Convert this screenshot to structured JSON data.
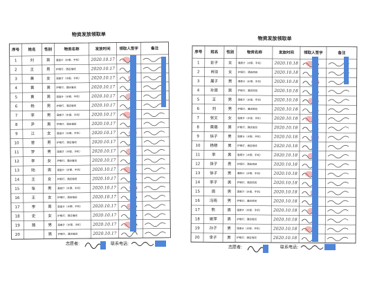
{
  "forms": [
    {
      "title": "物资发放领取单",
      "headers": [
        "序号",
        "姓名",
        "性别",
        "物资名称",
        "发放时间",
        "领取人签字",
        "备注"
      ],
      "rows": [
        [
          "1",
          "刘",
          "男",
          "温度计（水银、手机）",
          "2020.10.17"
        ],
        [
          "2",
          "王",
          "男",
          "护眼灯、酒店值班",
          "2020.10.17"
        ],
        [
          "3",
          "黄",
          "女",
          "温度计（水银、手机）",
          "2020.10.17"
        ],
        [
          "4",
          "黄",
          "男",
          "护眼灯、酒店值班",
          "2020.10.17"
        ],
        [
          "5",
          "黄",
          "男",
          "温度计（水银、手机）",
          "2020.10.17"
        ],
        [
          "6",
          "杨",
          "男",
          "护眼灯、酒店值班",
          "2020.10.17"
        ],
        [
          "7",
          "李",
          "男",
          "温度计（水银、手机）",
          "2020.10.17"
        ],
        [
          "8",
          "尹",
          "男",
          "护眼灯、酒店值班",
          "2020.10.17"
        ],
        [
          "9",
          "江",
          "女",
          "温度计（水银、手机）",
          "2020.10.17"
        ],
        [
          "10",
          "曾",
          "男",
          "护眼灯、酒店值班",
          "2020.10.17"
        ],
        [
          "11",
          "罗",
          "男",
          "温度计（水银、手机）",
          "2020.10.17"
        ],
        [
          "12",
          "李",
          "女",
          "护眼灯、酒店值班",
          "2020.10.17"
        ],
        [
          "13",
          "陆",
          "男",
          "温度计（水银、手机）",
          "2020.10.17"
        ],
        [
          "14",
          "王",
          "女",
          "护眼灯、酒店值班",
          "2020.10.17"
        ],
        [
          "15",
          "张",
          "男",
          "温度计（水银、手机）",
          "2020.10.17"
        ],
        [
          "16",
          "王",
          "女",
          "护眼灯、酒店值班",
          "2020.10.17"
        ],
        [
          "17",
          "李",
          "男",
          "温度计（水银、手机）",
          "2020.10.17"
        ],
        [
          "18",
          "史",
          "女",
          "护眼灯、酒店值班",
          "2020.10.17"
        ],
        [
          "19",
          "路",
          "男",
          "温度计（水银、手机）",
          "2020.10.17"
        ],
        [
          "20",
          "",
          "男",
          "护眼灯、酒店值班",
          "2020.10.17"
        ]
      ],
      "volunteer": "志愿者:",
      "phone": "联系电话:"
    },
    {
      "title": "物资发放领取单",
      "headers": [
        "序号",
        "姓名",
        "性别",
        "物资名称",
        "发放时间",
        "领取人签字",
        "备注"
      ],
      "rows": [
        [
          "1",
          "彭子",
          "女",
          "温度计（水银、手机）",
          "2020.10.18"
        ],
        [
          "2",
          "肖琼",
          "女",
          "护眼灯、酒店值班",
          "2020.10.18"
        ],
        [
          "3",
          "屠子",
          "男",
          "温度计（水银、手机）",
          "2020.10.18"
        ],
        [
          "4",
          "孙崇",
          "男",
          "护眼灯、酒店值班",
          "2020.10.18"
        ],
        [
          "5",
          "王",
          "男",
          "温度计（水银、手机）",
          "2020.10.18"
        ],
        [
          "6",
          "刘",
          "男",
          "护眼灯、酒店值班",
          "2020.10.18"
        ],
        [
          "7",
          "张文",
          "女",
          "温度计（水银、手机）",
          "2020.10.18"
        ],
        [
          "8",
          "黄璐",
          "男",
          "护眼灯、酒店值班",
          "2020.10.18"
        ],
        [
          "9",
          "徐子",
          "男",
          "温度计（水银、手机）",
          "2020.10.18"
        ],
        [
          "10",
          "杨杨",
          "男",
          "护眼灯、酒店值班",
          "2020.10.18"
        ],
        [
          "11",
          "李",
          "男",
          "温度计（水银、手机）",
          "2020.10.18"
        ],
        [
          "12",
          "张子",
          "男",
          "护眼灯、酒店值班",
          "2020.10.18"
        ],
        [
          "13",
          "徐子",
          "男",
          "温度计（水银、手机）",
          "2020.10.18"
        ],
        [
          "14",
          "李子",
          "男",
          "护眼灯、酒店值班",
          "2020.10.18"
        ],
        [
          "15",
          "周",
          "男",
          "温度计（水银、手机）",
          "2020.10.18"
        ],
        [
          "16",
          "冯雨",
          "男",
          "护眼灯、酒店值班",
          "2020.10.18"
        ],
        [
          "17",
          "熊",
          "男",
          "温度计（水银、手机）",
          "2020.10.18"
        ],
        [
          "18",
          "姚萍",
          "男",
          "护眼灯、酒店值班",
          "2020.10.18"
        ],
        [
          "19",
          "孙子",
          "男",
          "温度计（水银、手机）",
          "2020.10.18"
        ],
        [
          "20",
          "李子",
          "男",
          "护眼灯、酒店值班",
          "2020.10.18"
        ]
      ],
      "volunteer": "志愿者:",
      "phone": "联系电话:"
    }
  ]
}
